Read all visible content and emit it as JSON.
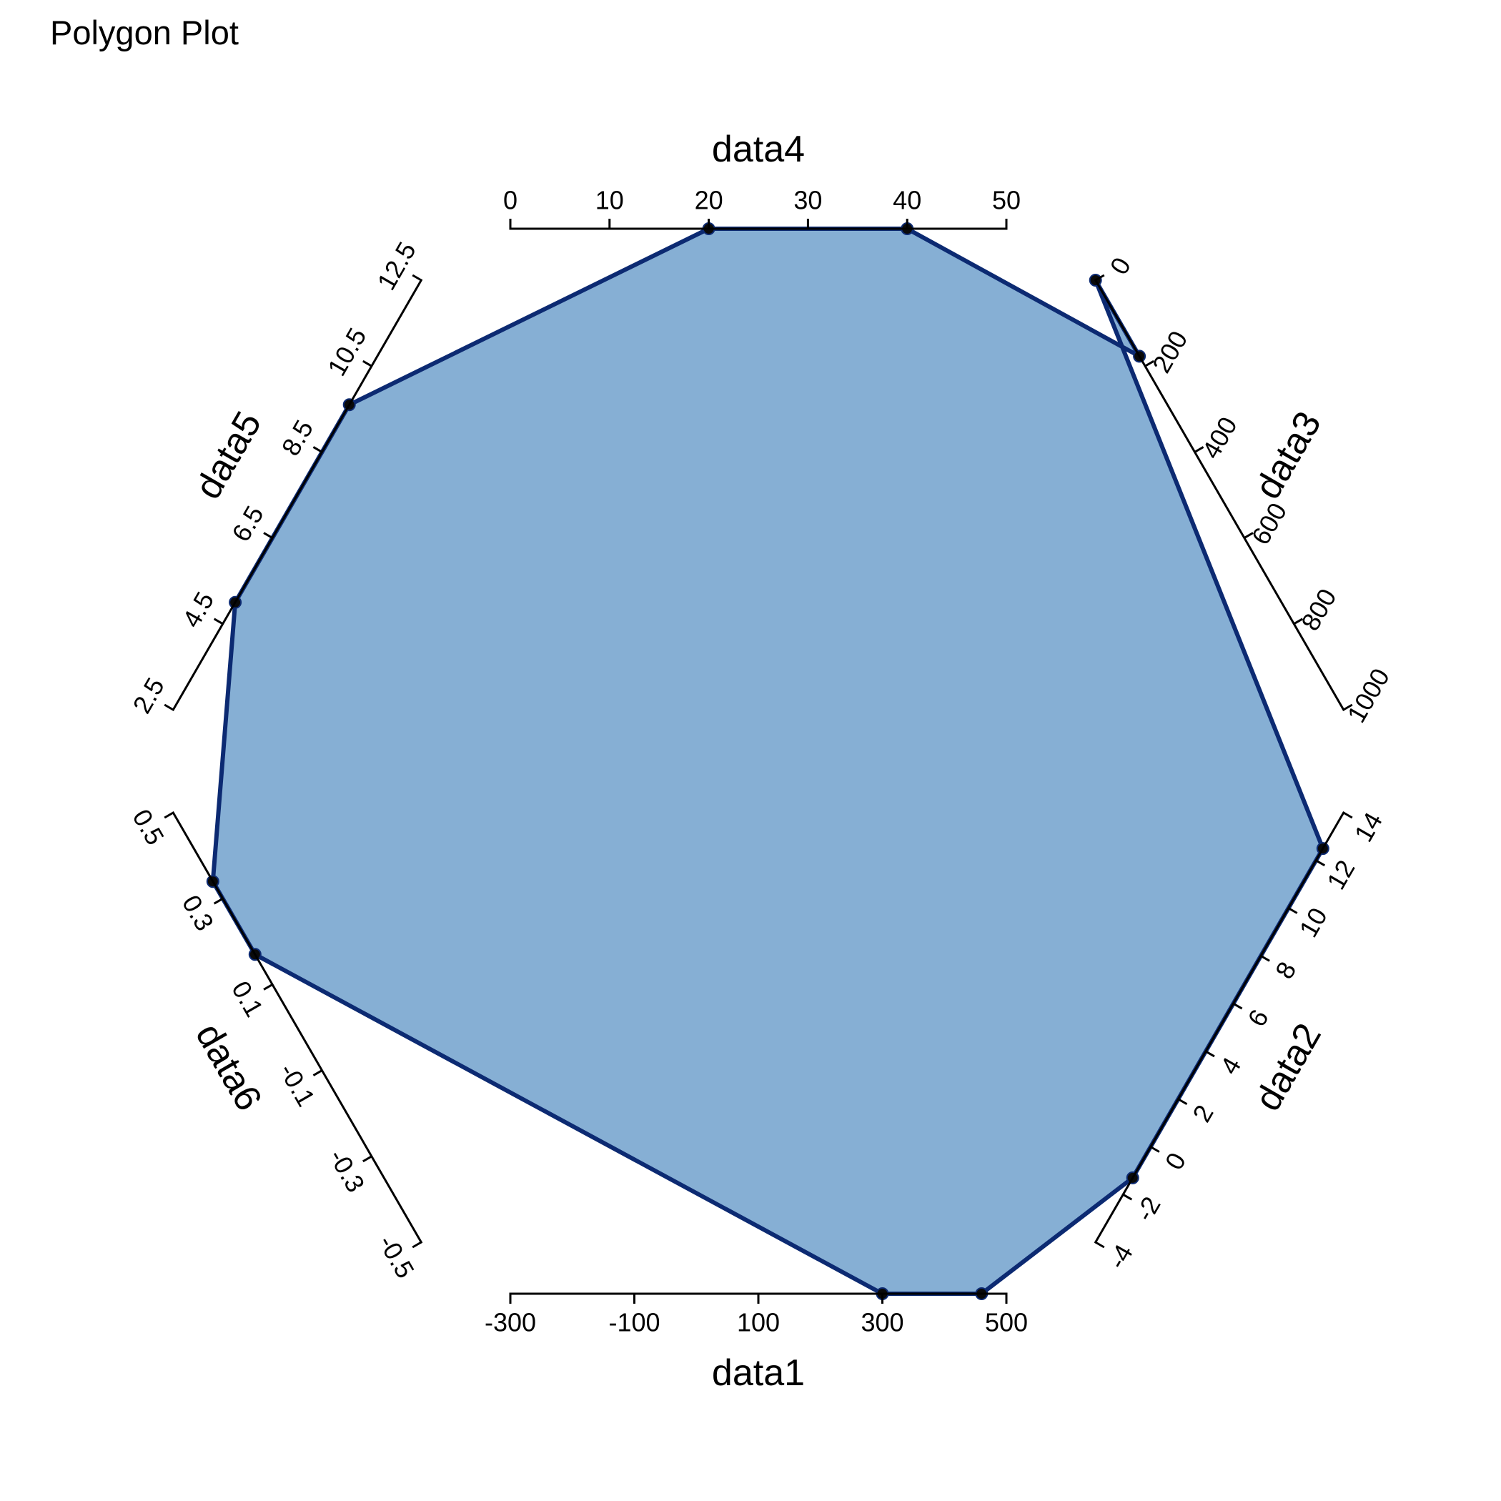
{
  "chart_data": {
    "type": "polygon",
    "title": "Polygon Plot",
    "fill_color": "#86afd4",
    "line_color": "#0c2a72",
    "marker_color": "#0a0a0a",
    "axes": [
      {
        "name": "data1",
        "ticks": [
          "-300",
          "-100",
          "100",
          "300",
          "500"
        ],
        "range": [
          -300,
          500
        ],
        "values": [
          300,
          460
        ]
      },
      {
        "name": "data2",
        "ticks": [
          "-4",
          "-2",
          "0",
          "2",
          "4",
          "6",
          "8",
          "10",
          "12",
          "14"
        ],
        "range": [
          -4,
          14
        ],
        "values": [
          -1.3,
          12.5
        ]
      },
      {
        "name": "data3",
        "ticks": [
          "0",
          "200",
          "400",
          "600",
          "800",
          "1000"
        ],
        "range": [
          0,
          1000
        ],
        "values": [
          0,
          177
        ]
      },
      {
        "name": "data4",
        "ticks": [
          "0",
          "10",
          "20",
          "30",
          "40",
          "50"
        ],
        "range": [
          0,
          50
        ],
        "values": [
          40,
          20
        ]
      },
      {
        "name": "data5",
        "ticks": [
          "2.5",
          "4.5",
          "6.5",
          "8.5",
          "10.5",
          "12.5"
        ],
        "range": [
          2.5,
          12.5
        ],
        "values": [
          9.6,
          5.0
        ]
      },
      {
        "name": "data6",
        "ticks": [
          "0.5",
          "0.3",
          "0.1",
          "-0.1",
          "-0.3",
          "-0.5"
        ],
        "range": [
          0.5,
          -0.5
        ],
        "values": [
          0.34,
          0.17
        ]
      }
    ]
  }
}
